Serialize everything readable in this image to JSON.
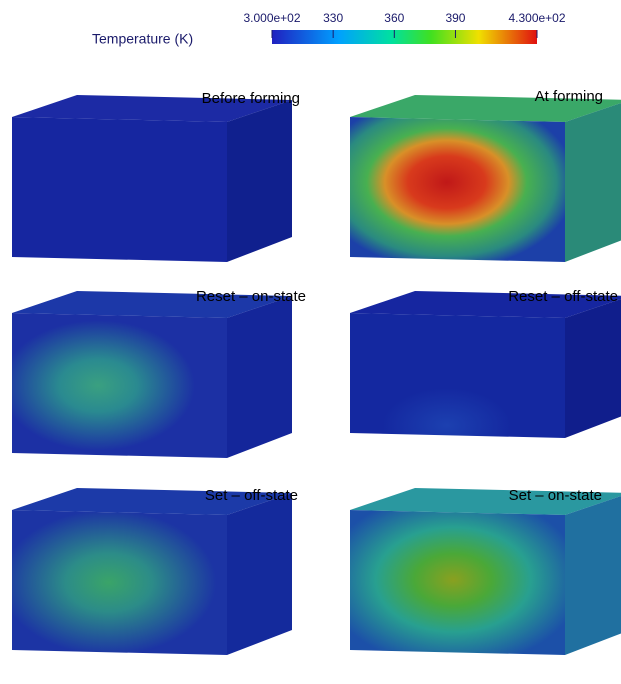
{
  "colorbar": {
    "title": "Temperature (K)",
    "range": [
      300,
      430
    ],
    "ticks": [
      {
        "value": 300,
        "label": "3.000e+02"
      },
      330,
      360,
      390,
      {
        "value": 430,
        "label": "4.300e+02"
      }
    ]
  },
  "panels": [
    {
      "label": "Before forming"
    },
    {
      "label": "At forming"
    },
    {
      "label": "Reset – on-state"
    },
    {
      "label": "Reset – off-state"
    },
    {
      "label": "Set – off-state"
    },
    {
      "label": "Set – on-state"
    }
  ]
}
